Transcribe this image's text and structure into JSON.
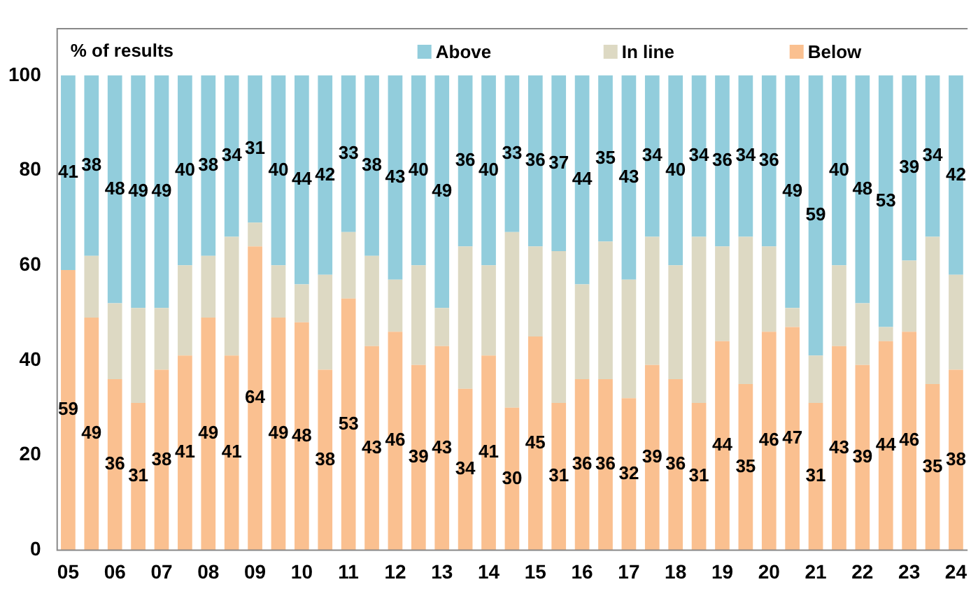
{
  "chart_data": {
    "type": "bar",
    "stacked": true,
    "ylabel": "% of results",
    "legend": "top right",
    "grid": false,
    "categories": [
      "05",
      null,
      "06",
      null,
      "07",
      null,
      "08",
      null,
      "09",
      null,
      "10",
      null,
      "11",
      null,
      "12",
      null,
      "13",
      null,
      "14",
      null,
      "15",
      null,
      "16",
      null,
      "17",
      null,
      "18",
      null,
      "19",
      null,
      "20",
      null,
      "21",
      null,
      "22",
      null,
      "23",
      null,
      "24"
    ],
    "ylim": [
      0,
      110
    ],
    "yticks": [
      0,
      20,
      40,
      60,
      80,
      100
    ],
    "series": [
      {
        "name": "Below",
        "color": "#fac090",
        "values": [
          59,
          49,
          36,
          31,
          38,
          41,
          49,
          41,
          64,
          49,
          48,
          38,
          53,
          43,
          46,
          39,
          43,
          34,
          41,
          30,
          45,
          31,
          36,
          36,
          32,
          39,
          36,
          31,
          44,
          35,
          46,
          47,
          31,
          43,
          39,
          44,
          46,
          35,
          38
        ],
        "value_labels": [
          "59",
          "49",
          "36",
          "31",
          "38",
          "41",
          "49",
          "41",
          "64",
          "49",
          "48",
          "38",
          "53",
          "43",
          "46",
          "39",
          "43",
          "34",
          "41",
          "30",
          "45",
          "31",
          "36",
          "36",
          "32",
          "39",
          "36",
          "31",
          "44",
          "35",
          "46",
          "47",
          "31",
          "43",
          "39",
          "44",
          "46",
          "35",
          "38"
        ]
      },
      {
        "name": "In line",
        "color": "#ddd9c3",
        "values": [
          0,
          13,
          16,
          20,
          13,
          19,
          13,
          25,
          5,
          11,
          8,
          20,
          14,
          19,
          11,
          21,
          8,
          30,
          19,
          37,
          19,
          32,
          20,
          29,
          25,
          27,
          24,
          35,
          20,
          31,
          18,
          4,
          10,
          17,
          13,
          3,
          15,
          31,
          20
        ]
      },
      {
        "name": "Above",
        "color": "#92cddc",
        "values": [
          41,
          38,
          48,
          49,
          49,
          40,
          38,
          34,
          31,
          40,
          44,
          42,
          33,
          38,
          43,
          40,
          49,
          36,
          40,
          33,
          36,
          37,
          44,
          35,
          43,
          34,
          40,
          34,
          36,
          34,
          36,
          49,
          59,
          40,
          48,
          53,
          39,
          34,
          42
        ],
        "value_labels": [
          "41",
          "38",
          "48",
          "49",
          "49",
          "40",
          "38",
          "34",
          "31",
          "40",
          "44",
          "42",
          "33",
          "38",
          "43",
          "40",
          "49",
          "36",
          "40",
          "33",
          "36",
          "37",
          "44",
          "35",
          "43",
          "34",
          "40",
          "34",
          "36",
          "34",
          "36",
          "49",
          "59",
          "40",
          "48",
          "53",
          "39",
          "34",
          "42"
        ]
      }
    ]
  }
}
